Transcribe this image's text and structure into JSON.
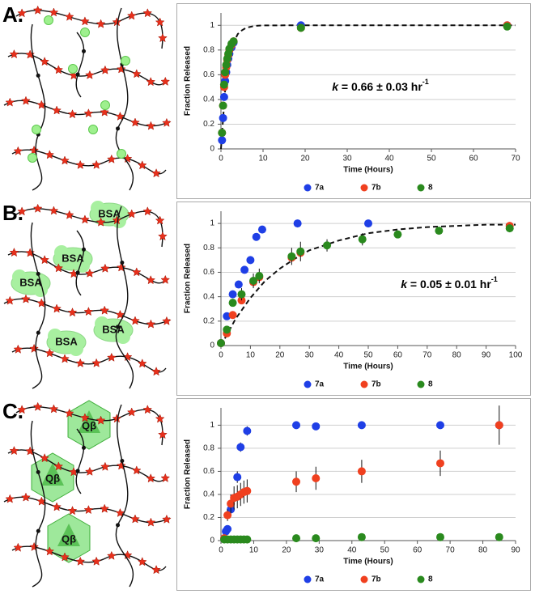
{
  "panels": [
    {
      "label": "A."
    },
    {
      "label": "B.",
      "cargo": [
        "BSA",
        "BSA",
        "BSA",
        "BSA",
        "BSA"
      ]
    },
    {
      "label": "C.",
      "cargo": [
        "Qβ",
        "Qβ",
        "Qβ"
      ]
    }
  ],
  "chart_data": [
    {
      "type": "scatter",
      "x_label": "Time (Hours)",
      "y_label": "Fraction Released",
      "annotation": {
        "symbol": "k",
        "text": " = 0.66 ± 0.03 hr",
        "sup": "-1"
      },
      "xlim": [
        0,
        70
      ],
      "xticks": [
        0,
        10,
        20,
        30,
        40,
        50,
        60,
        70
      ],
      "ylim": [
        0,
        1.1
      ],
      "yticks": [
        0,
        0.2,
        0.4,
        0.6,
        0.8,
        1
      ],
      "grid": true,
      "legend": "bottom",
      "series": [
        {
          "name": "7a",
          "color": "#1f3fe6",
          "x": [
            0.25,
            0.5,
            0.75,
            1,
            1.25,
            1.5,
            1.75,
            2,
            2.5,
            3,
            19,
            68
          ],
          "values": [
            0.07,
            0.25,
            0.42,
            0.55,
            0.62,
            0.68,
            0.73,
            0.77,
            0.82,
            0.86,
            1.0,
            1.0
          ]
        },
        {
          "name": "7b",
          "color": "#f0401f",
          "x": [
            0.25,
            0.5,
            0.75,
            1,
            1.25,
            1.5,
            1.75,
            2,
            2.5,
            3,
            19,
            68
          ],
          "values": [
            0.13,
            0.35,
            0.5,
            0.6,
            0.66,
            0.72,
            0.76,
            0.8,
            0.84,
            0.87,
            0.98,
            1.0
          ]
        },
        {
          "name": "8",
          "color": "#2a8a1e",
          "x": [
            0.25,
            0.5,
            0.75,
            1,
            1.25,
            1.5,
            1.75,
            2,
            2.5,
            3,
            19,
            68
          ],
          "values": [
            0.13,
            0.35,
            0.52,
            0.62,
            0.68,
            0.73,
            0.77,
            0.81,
            0.85,
            0.87,
            0.98,
            0.99
          ]
        }
      ],
      "fit": {
        "x": [
          0,
          1,
          2,
          3,
          4,
          5,
          6,
          8,
          10,
          15,
          20,
          70
        ],
        "values": [
          0,
          0.48,
          0.73,
          0.86,
          0.93,
          0.96,
          0.98,
          0.995,
          0.999,
          1,
          1,
          1
        ]
      }
    },
    {
      "type": "scatter",
      "x_label": "Time (Hours)",
      "y_label": "Fraction Released",
      "annotation": {
        "symbol": "k",
        "text": " = 0.05 ± 0.01 hr",
        "sup": "-1"
      },
      "xlim": [
        0,
        100
      ],
      "xticks": [
        0,
        10,
        20,
        30,
        40,
        50,
        60,
        70,
        80,
        90,
        100
      ],
      "ylim": [
        0,
        1.1
      ],
      "yticks": [
        0,
        0.2,
        0.4,
        0.6,
        0.8,
        1
      ],
      "grid": true,
      "legend": "bottom",
      "series": [
        {
          "name": "7a",
          "color": "#1f3fe6",
          "x": [
            0,
            2,
            4,
            6,
            8,
            10,
            12,
            14,
            26,
            50
          ],
          "values": [
            0.02,
            0.24,
            0.42,
            0.5,
            0.62,
            0.7,
            0.89,
            0.95,
            1.0,
            1.0
          ]
        },
        {
          "name": "7b",
          "color": "#f0401f",
          "x": [
            0,
            2,
            4,
            7,
            11,
            13,
            24,
            27,
            98
          ],
          "values": [
            0.02,
            0.1,
            0.25,
            0.37,
            0.52,
            0.56,
            0.72,
            0.76,
            0.98
          ]
        },
        {
          "name": "8",
          "color": "#2a8a1e",
          "x": [
            0,
            2,
            4,
            7,
            11,
            13,
            24,
            27,
            36,
            48,
            60,
            74,
            98
          ],
          "values": [
            0.02,
            0.13,
            0.35,
            0.42,
            0.53,
            0.57,
            0.73,
            0.77,
            0.82,
            0.87,
            0.91,
            0.94,
            0.96
          ],
          "errors": [
            0,
            0.02,
            0.03,
            0.05,
            0.06,
            0.06,
            0.07,
            0.08,
            0.05,
            0.05,
            0.02,
            0.02,
            0.02
          ]
        }
      ],
      "fit": {
        "x": [
          0,
          5,
          10,
          15,
          20,
          25,
          30,
          40,
          50,
          60,
          70,
          80,
          90,
          100
        ],
        "values": [
          0,
          0.22,
          0.39,
          0.53,
          0.63,
          0.71,
          0.78,
          0.86,
          0.92,
          0.95,
          0.97,
          0.98,
          0.99,
          0.99
        ]
      }
    },
    {
      "type": "scatter",
      "x_label": "Time (Hours)",
      "y_label": "Fraction Released",
      "xlim": [
        0,
        90
      ],
      "xticks": [
        0,
        10,
        20,
        30,
        40,
        50,
        60,
        70,
        80,
        90
      ],
      "ylim": [
        0,
        1.15
      ],
      "yticks": [
        0,
        0.2,
        0.4,
        0.6,
        0.8,
        1
      ],
      "grid": true,
      "legend": "bottom",
      "series": [
        {
          "name": "7a",
          "color": "#1f3fe6",
          "x": [
            1,
            1.5,
            2,
            3,
            5,
            6,
            8,
            23,
            29,
            43,
            67,
            85
          ],
          "values": [
            0.02,
            0.08,
            0.1,
            0.27,
            0.55,
            0.81,
            0.95,
            1.0,
            0.99,
            1.0,
            1.0,
            1.0
          ],
          "errors": [
            0.01,
            0.02,
            0.02,
            0.05,
            0.05,
            0.04,
            0.04,
            0.01,
            0.01,
            0.01,
            0.01,
            0.01
          ]
        },
        {
          "name": "7b",
          "color": "#f0401f",
          "x": [
            1,
            2,
            3,
            4,
            5,
            6,
            7,
            8,
            23,
            29,
            43,
            67,
            85
          ],
          "values": [
            0.02,
            0.22,
            0.32,
            0.37,
            0.38,
            0.4,
            0.42,
            0.43,
            0.51,
            0.54,
            0.6,
            0.67,
            1.0
          ],
          "errors": [
            0.01,
            0.05,
            0.08,
            0.1,
            0.1,
            0.1,
            0.1,
            0.1,
            0.09,
            0.1,
            0.1,
            0.11,
            0.17
          ]
        },
        {
          "name": "8",
          "color": "#2a8a1e",
          "x": [
            1,
            2,
            3,
            4,
            5,
            6,
            7,
            8,
            23,
            29,
            43,
            67,
            85
          ],
          "values": [
            0.01,
            0.01,
            0.01,
            0.01,
            0.01,
            0.01,
            0.01,
            0.01,
            0.02,
            0.02,
            0.03,
            0.03,
            0.03
          ],
          "errors": [
            0.01,
            0.01,
            0.01,
            0.01,
            0.01,
            0.01,
            0.01,
            0.01,
            0.03,
            0.03,
            0.03,
            0.03,
            0.03
          ]
        }
      ]
    }
  ]
}
